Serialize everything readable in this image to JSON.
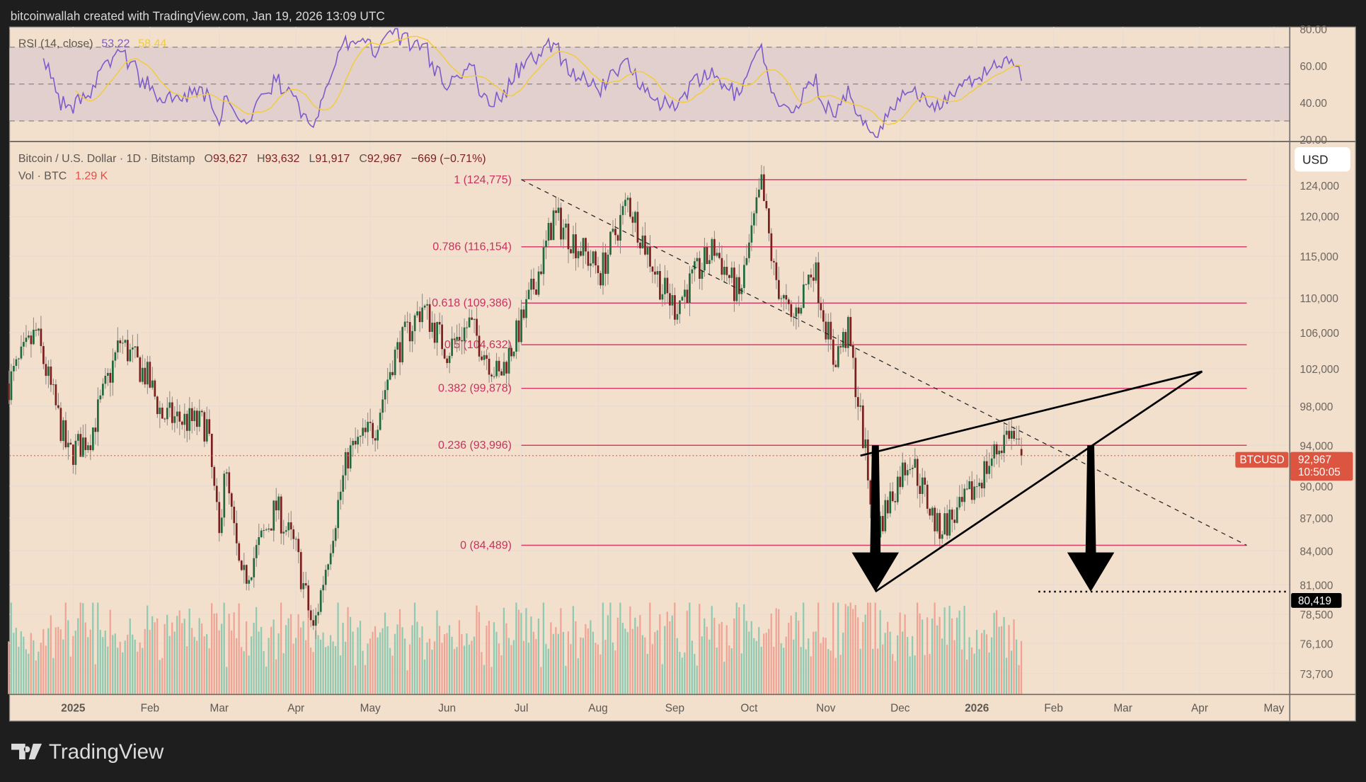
{
  "header": {
    "attribution": "bitcoinwallah created with TradingView.com, Jan 19, 2026 13:09 UTC"
  },
  "brand": {
    "logo_text": "TradingView"
  },
  "colors": {
    "background": "#f2dfcc",
    "up": "#1f6b3d",
    "down": "#7a1e1e",
    "vol_up": "#8ec9b2",
    "vol_down": "#f0a394",
    "fib": "#d83c6c",
    "rsi": "#7c5cc9",
    "rsi_ma": "#f2cc3c",
    "last_price": "#dc5540"
  },
  "rsi": {
    "label": "RSI (14, close)",
    "value": "53.22",
    "ma_value": "58.44",
    "ticks": [
      "80.00",
      "60.00",
      "40.00",
      "20.00"
    ],
    "levels": [
      70,
      50,
      30
    ]
  },
  "legend": {
    "symbol": "Bitcoin / U.S. Dollar · 1D · Bitstamp",
    "o_label": "O",
    "o": "93,627",
    "h_label": "H",
    "h": "93,632",
    "l_label": "L",
    "l": "91,917",
    "c_label": "C",
    "c": "92,967",
    "change": "−669 (−0.71%)",
    "vol_label": "Vol · BTC",
    "vol": "1.29 K"
  },
  "price_axis": {
    "currency": "USD",
    "last_symbol": "BTCUSD",
    "last_price": "92,967",
    "countdown": "10:50:05",
    "target_label": "80,419"
  },
  "chart_data": {
    "type": "candlestick",
    "scale": "log",
    "ylim": [
      71000,
      128000
    ],
    "yticks": [
      124000,
      120000,
      115000,
      110000,
      106000,
      102000,
      98000,
      94000,
      90000,
      87000,
      84000,
      81000,
      78500,
      76100,
      73700
    ],
    "ytick_labels": [
      "124,000",
      "120,000",
      "115,000",
      "110,000",
      "106,000",
      "102,000",
      "98,000",
      "94,000",
      "90,000",
      "87,000",
      "84,000",
      "81,000",
      "78,500",
      "76,100",
      "73,700"
    ],
    "xticks": [
      {
        "date": "2025-01-01",
        "label": "2025",
        "bold": true
      },
      {
        "date": "2025-02-01",
        "label": "Feb"
      },
      {
        "date": "2025-03-01",
        "label": "Mar"
      },
      {
        "date": "2025-04-01",
        "label": "Apr"
      },
      {
        "date": "2025-05-01",
        "label": "May"
      },
      {
        "date": "2025-06-01",
        "label": "Jun"
      },
      {
        "date": "2025-07-01",
        "label": "Jul"
      },
      {
        "date": "2025-08-01",
        "label": "Aug"
      },
      {
        "date": "2025-09-01",
        "label": "Sep"
      },
      {
        "date": "2025-10-01",
        "label": "Oct"
      },
      {
        "date": "2025-11-01",
        "label": "Nov"
      },
      {
        "date": "2025-12-01",
        "label": "Dec"
      },
      {
        "date": "2026-01-01",
        "label": "2026",
        "bold": true
      },
      {
        "date": "2026-02-01",
        "label": "Feb"
      },
      {
        "date": "2026-03-01",
        "label": "Mar"
      },
      {
        "date": "2026-04-01",
        "label": "Apr"
      },
      {
        "date": "2026-05-01",
        "label": "May"
      }
    ],
    "approx_closes": [
      [
        "2024-12-06",
        100400
      ],
      [
        "2024-12-17",
        106000
      ],
      [
        "2024-12-30",
        93000
      ],
      [
        "2025-01-08",
        95000
      ],
      [
        "2025-01-20",
        105000
      ],
      [
        "2025-01-31",
        101000
      ],
      [
        "2025-02-06",
        97000
      ],
      [
        "2025-02-24",
        96000
      ],
      [
        "2025-03-01",
        85000
      ],
      [
        "2025-03-03",
        92000
      ],
      [
        "2025-03-10",
        81000
      ],
      [
        "2025-03-24",
        88000
      ],
      [
        "2025-04-01",
        84000
      ],
      [
        "2025-04-08",
        77000
      ],
      [
        "2025-04-15",
        85000
      ],
      [
        "2025-04-22",
        93000
      ],
      [
        "2025-05-03",
        96000
      ],
      [
        "2025-05-10",
        103000
      ],
      [
        "2025-05-22",
        109000
      ],
      [
        "2025-06-01",
        104000
      ],
      [
        "2025-06-10",
        107000
      ],
      [
        "2025-06-22",
        101000
      ],
      [
        "2025-07-01",
        107000
      ],
      [
        "2025-07-10",
        115000
      ],
      [
        "2025-07-14",
        120000
      ],
      [
        "2025-08-02",
        113000
      ],
      [
        "2025-08-13",
        122000
      ],
      [
        "2025-08-27",
        111000
      ],
      [
        "2025-09-01",
        109000
      ],
      [
        "2025-09-17",
        116000
      ],
      [
        "2025-09-27",
        110000
      ],
      [
        "2025-10-06",
        124000
      ],
      [
        "2025-10-11",
        113000
      ],
      [
        "2025-10-18",
        107000
      ],
      [
        "2025-10-27",
        114000
      ],
      [
        "2025-11-04",
        103000
      ],
      [
        "2025-11-10",
        106000
      ],
      [
        "2025-11-16",
        95000
      ],
      [
        "2025-11-21",
        85500
      ],
      [
        "2025-11-30",
        90500
      ],
      [
        "2025-12-05",
        93000
      ],
      [
        "2025-12-16",
        86000
      ],
      [
        "2025-12-25",
        87500
      ],
      [
        "2026-01-04",
        91500
      ],
      [
        "2026-01-14",
        95500
      ],
      [
        "2026-01-19",
        92967
      ]
    ],
    "fib_levels": [
      {
        "ratio": 1,
        "price": 124775,
        "label": "1 (124,775)"
      },
      {
        "ratio": 0.786,
        "price": 116154,
        "label": "0.786 (116,154)"
      },
      {
        "ratio": 0.618,
        "price": 109386,
        "label": "0.618 (109,386)"
      },
      {
        "ratio": 0.5,
        "price": 104632,
        "label": "0.5 (104,632)"
      },
      {
        "ratio": 0.382,
        "price": 99878,
        "label": "0.382 (99,878)"
      },
      {
        "ratio": 0.236,
        "price": 93996,
        "label": "0.236 (93,996)"
      },
      {
        "ratio": 0,
        "price": 84489,
        "label": "0 (84,489)"
      }
    ],
    "annotations": {
      "descending_trendline": [
        [
          "2025-07-01",
          124775
        ],
        [
          "2026-04-20",
          84489
        ]
      ],
      "wedge_upper": [
        [
          "2025-11-15",
          92967
        ],
        [
          "2026-04-02",
          101700
        ]
      ],
      "wedge_lower": [
        [
          "2025-11-21",
          80419
        ],
        [
          "2026-04-02",
          101700
        ]
      ],
      "arrows": [
        [
          [
            "2025-11-21",
            93996
          ],
          [
            "2025-11-21",
            80419
          ]
        ],
        [
          [
            "2026-02-16",
            93996
          ],
          [
            "2026-02-16",
            80419
          ]
        ]
      ],
      "target_price": 80419
    },
    "last_price": 92967
  }
}
